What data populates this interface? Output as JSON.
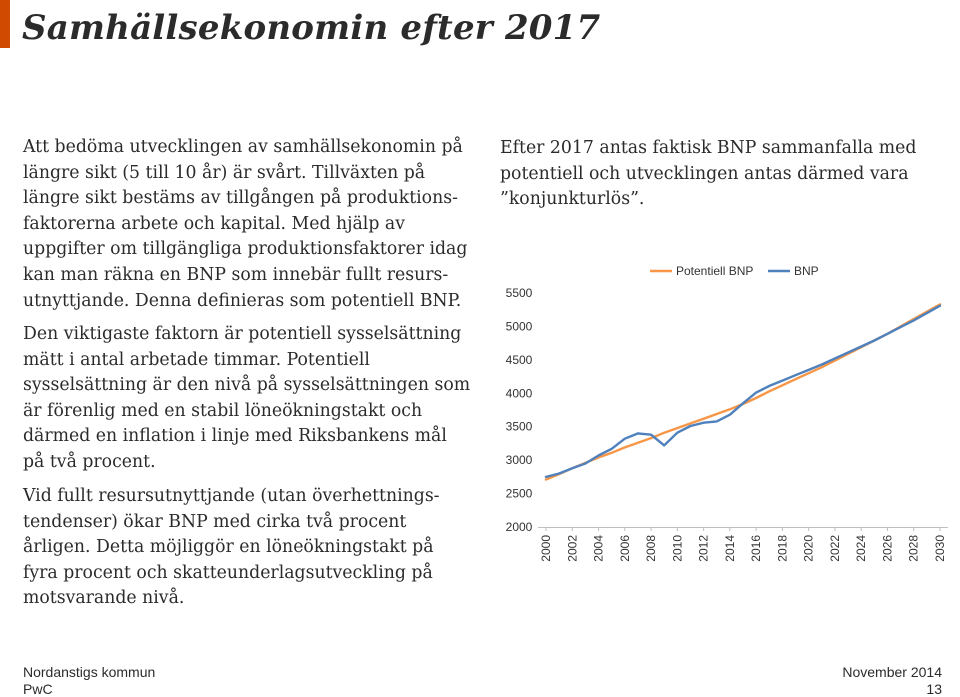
{
  "slide": {
    "title": "Samhällsekonomin efter 2017",
    "paragraphs": [
      "Att bedöma utvecklingen av samhällsekonomin på\nlängre sikt (5 till 10 år) är svårt. Tillväxten på\nlängre sikt bestäms av tillgången på produktions-\nfaktorerna arbete och kapital. Med hjälp av\nuppgifter om tillgängliga produktionsfaktorer idag\nkan man räkna en BNP som innebär fullt resurs-\nutnyttjande. Denna definieras som potentiell BNP.",
      "Den viktigaste faktorn är potentiell sysselsättning\nmätt i antal arbetade timmar. Potentiell\nsysselsättning är den nivå på sysselsättningen som\när förenlig med en stabil löneökningstakt och\ndärmed en inflation i linje med Riksbankens mål\npå två procent.",
      "Vid fullt resursutnyttjande (utan överhettnings-\ntendenser) ökar BNP med cirka två procent\nårligen. Detta möjliggör en löneökningstakt på\nfyra procent och skatteunderlagsutveckling på\nmotsvarande nivå.",
      "Efter 2017 antas faktisk BNP sammanfalla med\npotentiell och utvecklingen antas därmed vara\n”konjunkturlös”."
    ],
    "footer": {
      "org": "Nordanstigs kommun",
      "brand": "PwC",
      "date": "November 2014",
      "page": "13"
    },
    "colors": {
      "accent": "#d04a02",
      "text": "#2b2b2b",
      "potentiell": "#f79646",
      "bnp": "#4f81bd"
    }
  },
  "chart_data": {
    "type": "line",
    "title": "",
    "xlabel": "",
    "ylabel": "",
    "x": [
      2000,
      2001,
      2002,
      2003,
      2004,
      2005,
      2006,
      2007,
      2008,
      2009,
      2010,
      2011,
      2012,
      2013,
      2014,
      2015,
      2016,
      2017,
      2018,
      2019,
      2020,
      2021,
      2022,
      2023,
      2024,
      2025,
      2026,
      2027,
      2028,
      2029,
      2030
    ],
    "x_ticks": [
      "2000",
      "2002",
      "2004",
      "2006",
      "2008",
      "2010",
      "2012",
      "2014",
      "2016",
      "2018",
      "2020",
      "2022",
      "2024",
      "2026",
      "2028",
      "2030"
    ],
    "y_ticks": [
      "2000",
      "2500",
      "3000",
      "3500",
      "4000",
      "4500",
      "5000",
      "5500"
    ],
    "ylim": [
      2000,
      5500
    ],
    "grid": false,
    "legend_position": "top",
    "series": [
      {
        "name": "Potentiell BNP",
        "color": "#f79646",
        "values": [
          2710,
          2790,
          2880,
          2960,
          3040,
          3110,
          3190,
          3260,
          3330,
          3410,
          3480,
          3550,
          3620,
          3690,
          3760,
          3840,
          3930,
          4030,
          4120,
          4210,
          4300,
          4390,
          4490,
          4590,
          4690,
          4790,
          4890,
          5000,
          5110,
          5220,
          5330
        ]
      },
      {
        "name": "BNP",
        "color": "#4f81bd",
        "values": [
          2750,
          2800,
          2880,
          2950,
          3070,
          3170,
          3320,
          3400,
          3380,
          3220,
          3410,
          3510,
          3560,
          3580,
          3680,
          3850,
          4010,
          4110,
          4190,
          4270,
          4350,
          4430,
          4520,
          4610,
          4700,
          4790,
          4890,
          4990,
          5090,
          5200,
          5310
        ]
      }
    ]
  }
}
